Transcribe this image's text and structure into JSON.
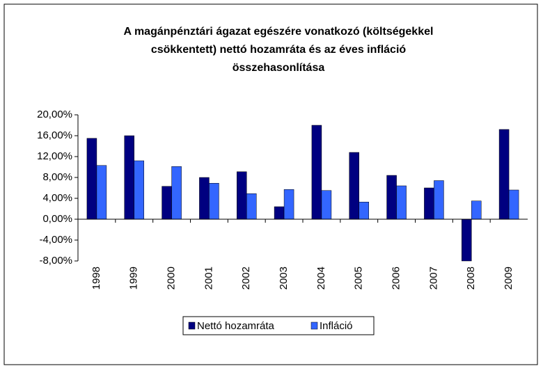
{
  "chart_data": {
    "type": "bar",
    "title": [
      "A magánpénztári ágazat egészére vonatkozó (költségekkel",
      "csökkentett) nettó hozamráta és az éves infláció",
      "összehasonlítása"
    ],
    "categories": [
      "1998",
      "1999",
      "2000",
      "2001",
      "2002",
      "2003",
      "2004",
      "2005",
      "2006",
      "2007",
      "2008",
      "2009"
    ],
    "series": [
      {
        "name": "Nettó hozamráta",
        "color": "#000080",
        "values": [
          15.5,
          16.0,
          6.3,
          8.0,
          9.1,
          2.4,
          18.0,
          12.8,
          8.4,
          6.0,
          -8.0,
          17.2
        ]
      },
      {
        "name": "Infláció",
        "color": "#3366ff",
        "values": [
          10.3,
          11.2,
          10.1,
          6.9,
          4.9,
          5.7,
          5.5,
          3.3,
          6.4,
          7.4,
          3.5,
          5.6
        ]
      }
    ],
    "ylim": [
      -8,
      20
    ],
    "yticks": [
      {
        "value": -8,
        "label": "-8,00%"
      },
      {
        "value": -4,
        "label": "-4,00%"
      },
      {
        "value": 0,
        "label": "0,00%"
      },
      {
        "value": 4,
        "label": "4,00%"
      },
      {
        "value": 8,
        "label": "8,00%"
      },
      {
        "value": 12,
        "label": "12,00%"
      },
      {
        "value": 16,
        "label": "16,00%"
      },
      {
        "value": 20,
        "label": "20,00%"
      }
    ],
    "grid": false,
    "legend": "bottom"
  }
}
